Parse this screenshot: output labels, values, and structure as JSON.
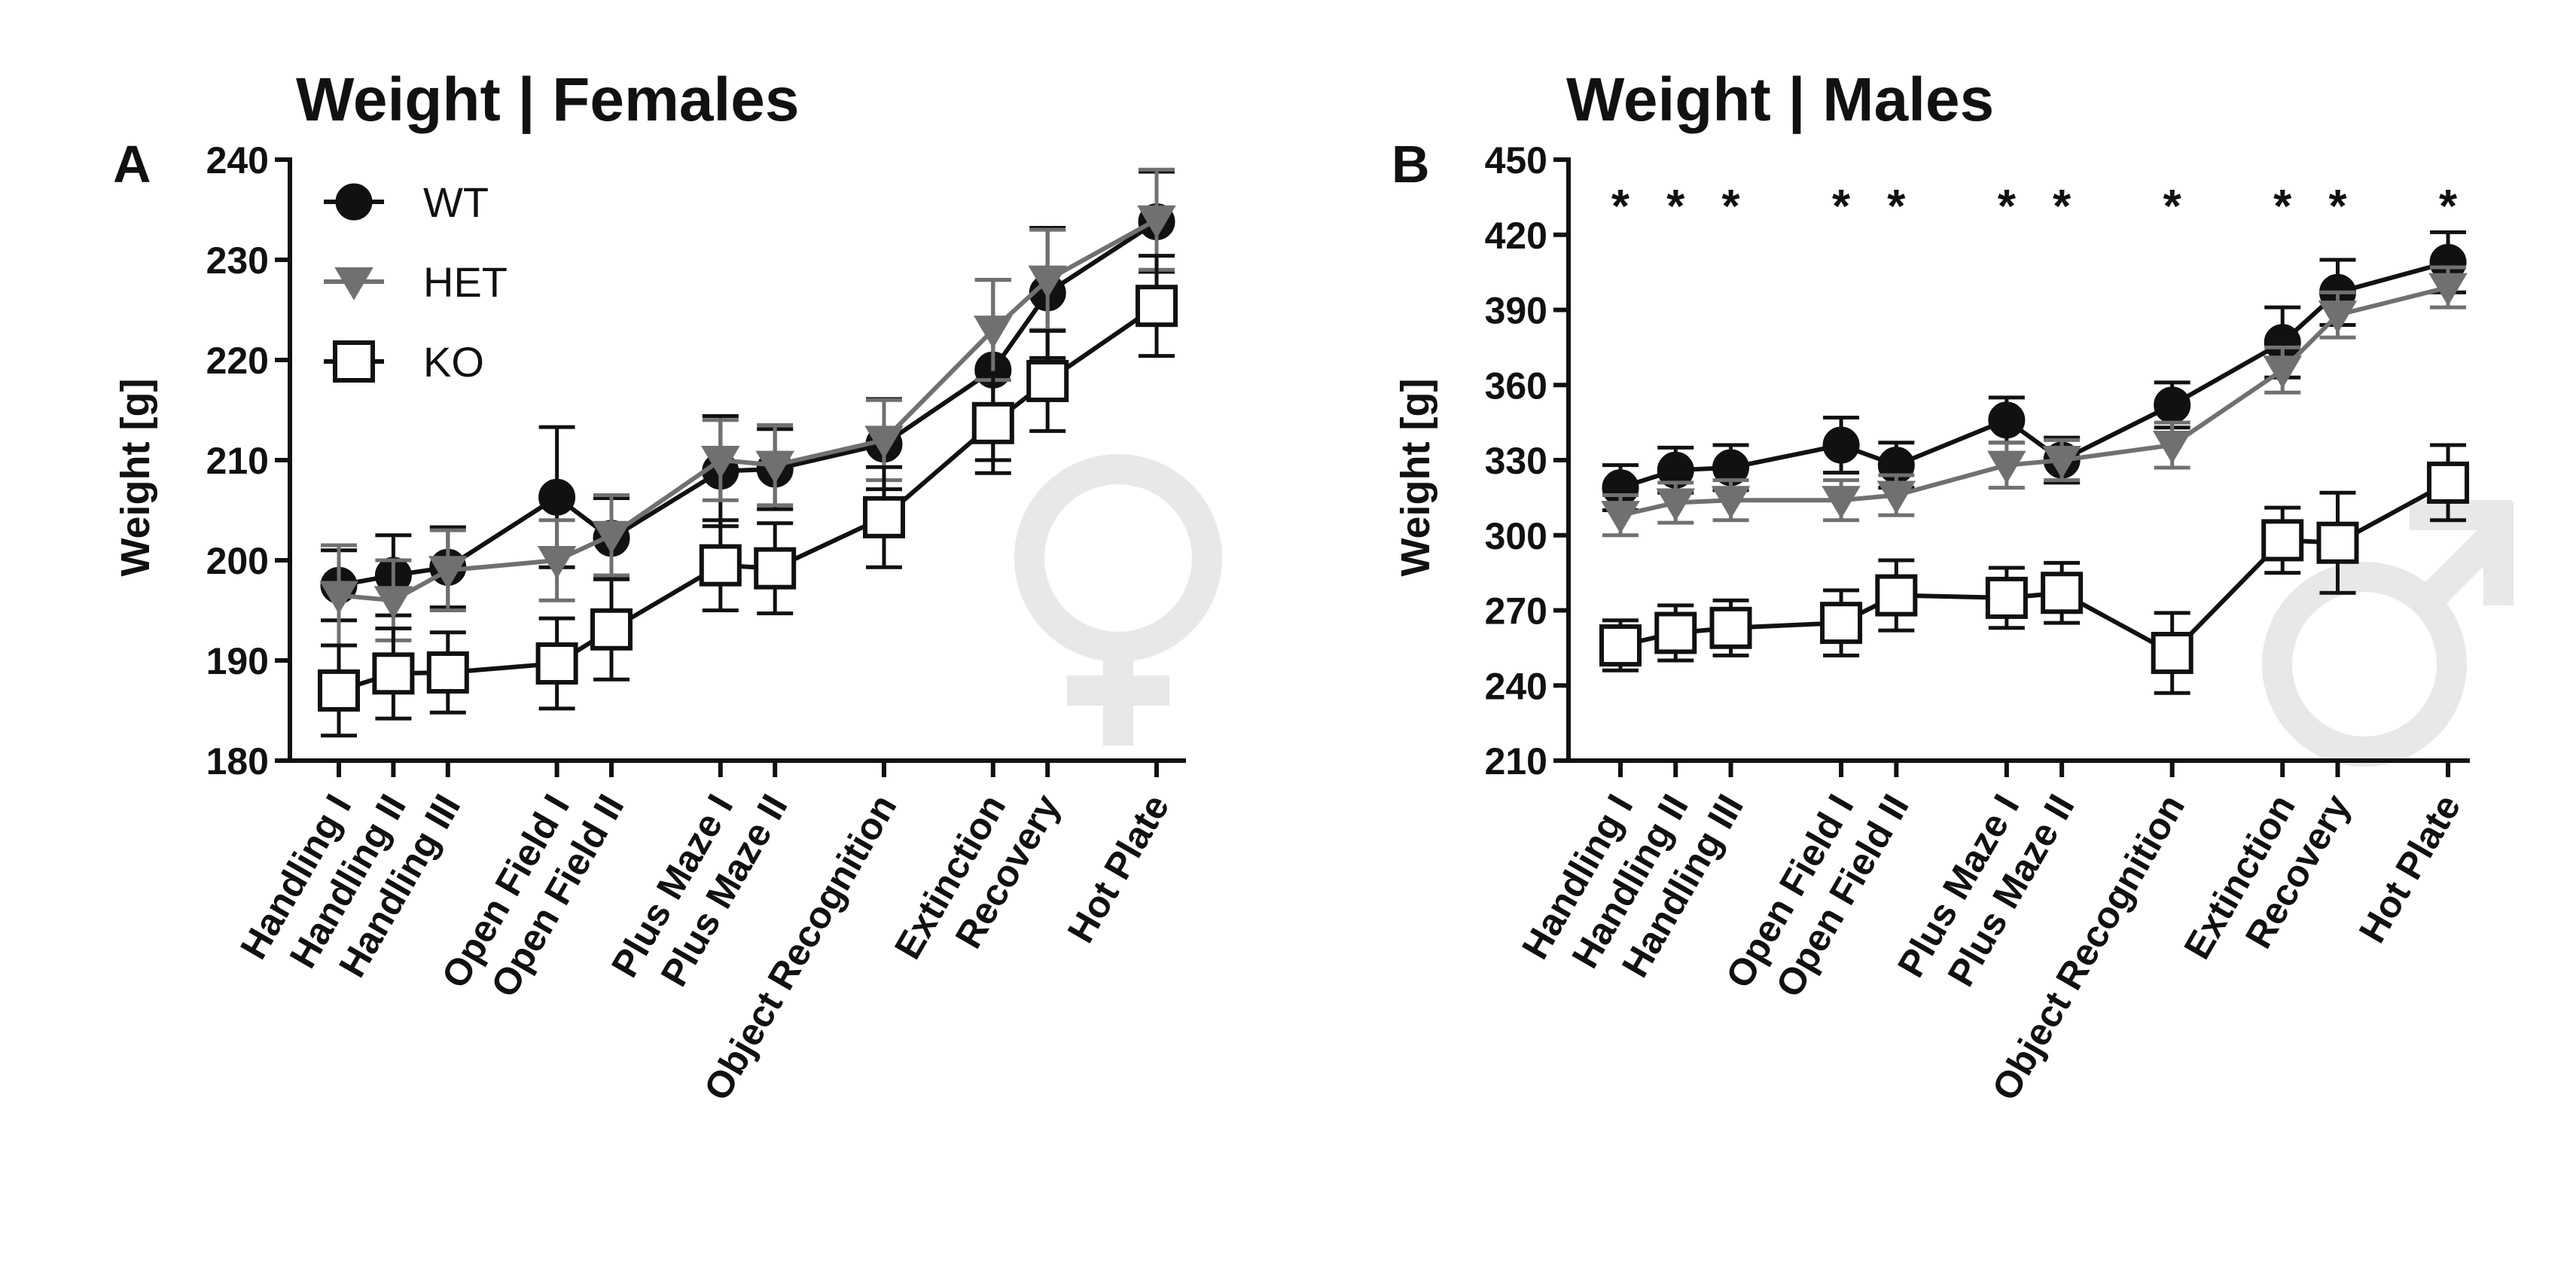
{
  "chart_data": [
    {
      "type": "line",
      "panel": "A",
      "title": "Weight | Females",
      "ylabel": "Weight [g]",
      "ylim": [
        180,
        240
      ],
      "yticks": [
        "180",
        "190",
        "200",
        "210",
        "220",
        "230",
        "240"
      ],
      "legend_placement": "top-left",
      "sex_symbol": "female-symbol",
      "categories": [
        "Handling I",
        "Handling II",
        "Handling III",
        "Open Field I",
        "Open Field II",
        "Plus Maze I",
        "Plus Maze II",
        "Object Recognition",
        "Extinction",
        "Recovery",
        "Hot Plate"
      ],
      "x": [
        1,
        2,
        3,
        5,
        6,
        8,
        9,
        11,
        13,
        14,
        16
      ],
      "significance": [],
      "series": [
        {
          "name": "WT",
          "marker": "circle",
          "color": "#111111",
          "values": [
            197.5,
            198.5,
            199.3,
            206.3,
            202.2,
            208.9,
            209.1,
            211.6,
            219,
            226.7,
            233.8
          ],
          "errors": [
            3.5,
            4.0,
            4.0,
            7.0,
            4.0,
            5.5,
            4.0,
            4.5,
            9.0,
            6.5,
            5.0
          ]
        },
        {
          "name": "HET",
          "marker": "triangle-down",
          "color": "#707070",
          "values": [
            196.5,
            196.0,
            199.0,
            200.0,
            202.5,
            210.0,
            209.5,
            212.0,
            223.0,
            228.0,
            234.0
          ],
          "errors": [
            5.0,
            4.0,
            4.0,
            4.0,
            4.0,
            4.0,
            4.0,
            4.0,
            5.0,
            5.0,
            5.0
          ]
        },
        {
          "name": "KO",
          "marker": "square-open",
          "color": "#111111",
          "values": [
            187,
            188.7,
            188.8,
            189.7,
            193.1,
            199.5,
            199.2,
            204.3,
            213.7,
            217.9,
            225.4
          ],
          "errors": [
            4.5,
            4.5,
            4.0,
            4.5,
            5.0,
            4.5,
            4.5,
            5.0,
            5.0,
            5.0,
            5.0
          ]
        }
      ]
    },
    {
      "type": "line",
      "panel": "B",
      "title": "Weight | Males",
      "ylabel": "Weight [g]",
      "ylim": [
        210,
        450
      ],
      "yticks": [
        "210",
        "240",
        "270",
        "300",
        "330",
        "360",
        "390",
        "420",
        "450"
      ],
      "sex_symbol": "male-symbol",
      "categories": [
        "Handling I",
        "Handling II",
        "Handling III",
        "Open Field I",
        "Open Field II",
        "Plus Maze I",
        "Plus Maze II",
        "Object Recognition",
        "Extinction",
        "Recovery",
        "Hot Plate"
      ],
      "x": [
        1,
        2,
        3,
        5,
        6,
        8,
        9,
        11,
        13,
        14,
        16
      ],
      "significance": [
        "*",
        "*",
        "*",
        "*",
        "*",
        "*",
        "*",
        "*",
        "*",
        "*",
        "*"
      ],
      "series": [
        {
          "name": "WT",
          "marker": "circle",
          "color": "#111111",
          "values": [
            319,
            326,
            327,
            336,
            328,
            346,
            330,
            352,
            377,
            397,
            409
          ],
          "errors": [
            9,
            9,
            9,
            11,
            9,
            9,
            9,
            9,
            14,
            13,
            12
          ]
        },
        {
          "name": "HET",
          "marker": "triangle-down",
          "color": "#707070",
          "values": [
            308,
            313,
            314,
            314,
            316,
            328,
            330,
            336,
            366,
            388,
            399
          ],
          "errors": [
            8,
            8,
            8,
            8,
            8,
            9,
            8,
            9,
            9,
            9,
            8
          ]
        },
        {
          "name": "KO",
          "marker": "square-open",
          "color": "#111111",
          "values": [
            256,
            261,
            263,
            265,
            276,
            275,
            277,
            253,
            298,
            297,
            321
          ],
          "errors": [
            10,
            11,
            11,
            13,
            14,
            12,
            12,
            16,
            13,
            20,
            15
          ]
        }
      ]
    }
  ]
}
